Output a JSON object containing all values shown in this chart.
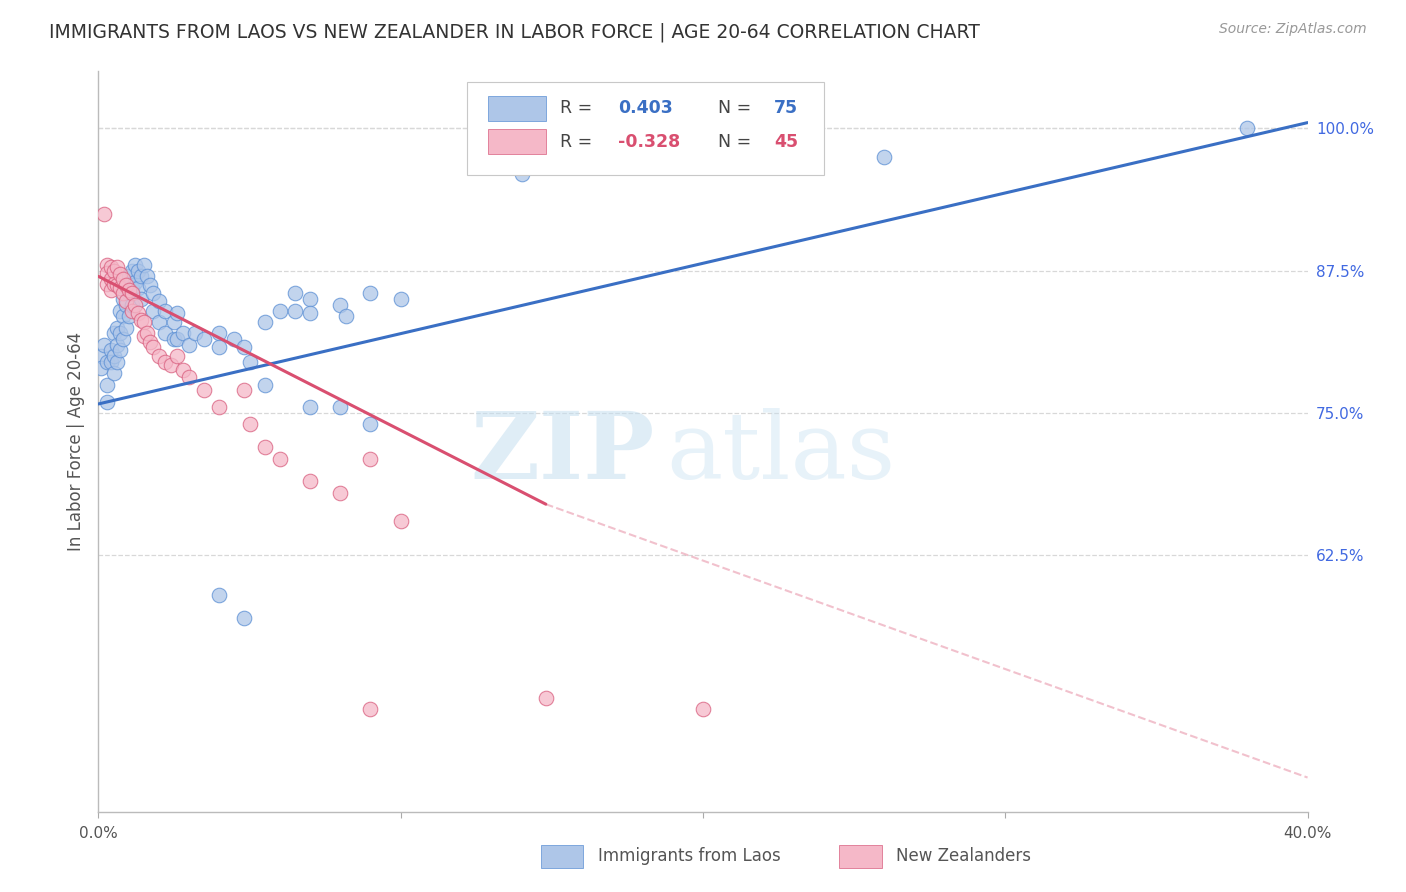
{
  "title": "IMMIGRANTS FROM LAOS VS NEW ZEALANDER IN LABOR FORCE | AGE 20-64 CORRELATION CHART",
  "source": "Source: ZipAtlas.com",
  "ylabel": "In Labor Force | Age 20-64",
  "xlim": [
    0.0,
    0.4
  ],
  "ylim": [
    0.4,
    1.05
  ],
  "blue_color": "#aec6e8",
  "pink_color": "#f5b8c8",
  "blue_edge": "#5b8fd4",
  "pink_edge": "#d95f7f",
  "blue_line": "#3a6fc4",
  "pink_line": "#d94f70",
  "blue_trend": [
    0.0,
    0.4,
    0.758,
    1.005
  ],
  "pink_trend_solid": [
    0.0,
    0.148,
    0.87,
    0.67
  ],
  "pink_trend_dashed": [
    0.148,
    0.4,
    0.67,
    0.43
  ],
  "watermark_zip": "ZIP",
  "watermark_atlas": "atlas",
  "grid_color": "#d8d8d8",
  "axis_label_color": "#4169e1",
  "blue_scatter": [
    [
      0.001,
      0.8
    ],
    [
      0.001,
      0.79
    ],
    [
      0.002,
      0.81
    ],
    [
      0.003,
      0.795
    ],
    [
      0.003,
      0.775
    ],
    [
      0.003,
      0.76
    ],
    [
      0.004,
      0.805
    ],
    [
      0.004,
      0.795
    ],
    [
      0.005,
      0.82
    ],
    [
      0.005,
      0.8
    ],
    [
      0.005,
      0.785
    ],
    [
      0.006,
      0.825
    ],
    [
      0.006,
      0.81
    ],
    [
      0.006,
      0.795
    ],
    [
      0.007,
      0.84
    ],
    [
      0.007,
      0.82
    ],
    [
      0.007,
      0.805
    ],
    [
      0.008,
      0.85
    ],
    [
      0.008,
      0.835
    ],
    [
      0.008,
      0.815
    ],
    [
      0.009,
      0.86
    ],
    [
      0.009,
      0.845
    ],
    [
      0.009,
      0.825
    ],
    [
      0.01,
      0.87
    ],
    [
      0.01,
      0.855
    ],
    [
      0.01,
      0.835
    ],
    [
      0.011,
      0.875
    ],
    [
      0.011,
      0.86
    ],
    [
      0.011,
      0.845
    ],
    [
      0.012,
      0.88
    ],
    [
      0.012,
      0.865
    ],
    [
      0.013,
      0.875
    ],
    [
      0.013,
      0.86
    ],
    [
      0.014,
      0.87
    ],
    [
      0.014,
      0.85
    ],
    [
      0.015,
      0.88
    ],
    [
      0.016,
      0.87
    ],
    [
      0.017,
      0.862
    ],
    [
      0.018,
      0.855
    ],
    [
      0.018,
      0.84
    ],
    [
      0.02,
      0.848
    ],
    [
      0.02,
      0.83
    ],
    [
      0.022,
      0.84
    ],
    [
      0.022,
      0.82
    ],
    [
      0.025,
      0.83
    ],
    [
      0.025,
      0.815
    ],
    [
      0.026,
      0.838
    ],
    [
      0.026,
      0.815
    ],
    [
      0.028,
      0.82
    ],
    [
      0.03,
      0.81
    ],
    [
      0.032,
      0.82
    ],
    [
      0.035,
      0.815
    ],
    [
      0.04,
      0.82
    ],
    [
      0.04,
      0.808
    ],
    [
      0.045,
      0.815
    ],
    [
      0.048,
      0.808
    ],
    [
      0.055,
      0.83
    ],
    [
      0.06,
      0.84
    ],
    [
      0.065,
      0.855
    ],
    [
      0.065,
      0.84
    ],
    [
      0.07,
      0.85
    ],
    [
      0.07,
      0.838
    ],
    [
      0.08,
      0.845
    ],
    [
      0.082,
      0.835
    ],
    [
      0.09,
      0.855
    ],
    [
      0.1,
      0.85
    ],
    [
      0.05,
      0.795
    ],
    [
      0.055,
      0.775
    ],
    [
      0.07,
      0.755
    ],
    [
      0.08,
      0.755
    ],
    [
      0.09,
      0.74
    ],
    [
      0.14,
      0.96
    ],
    [
      0.26,
      0.975
    ],
    [
      0.38,
      1.0
    ],
    [
      0.04,
      0.59
    ],
    [
      0.048,
      0.57
    ]
  ],
  "pink_scatter": [
    [
      0.002,
      0.925
    ],
    [
      0.003,
      0.88
    ],
    [
      0.003,
      0.873
    ],
    [
      0.003,
      0.863
    ],
    [
      0.004,
      0.878
    ],
    [
      0.004,
      0.868
    ],
    [
      0.004,
      0.858
    ],
    [
      0.005,
      0.875
    ],
    [
      0.005,
      0.863
    ],
    [
      0.006,
      0.878
    ],
    [
      0.006,
      0.862
    ],
    [
      0.007,
      0.872
    ],
    [
      0.007,
      0.86
    ],
    [
      0.008,
      0.868
    ],
    [
      0.008,
      0.855
    ],
    [
      0.009,
      0.862
    ],
    [
      0.009,
      0.848
    ],
    [
      0.01,
      0.858
    ],
    [
      0.011,
      0.855
    ],
    [
      0.011,
      0.84
    ],
    [
      0.012,
      0.845
    ],
    [
      0.013,
      0.838
    ],
    [
      0.014,
      0.832
    ],
    [
      0.015,
      0.83
    ],
    [
      0.015,
      0.818
    ],
    [
      0.016,
      0.82
    ],
    [
      0.017,
      0.812
    ],
    [
      0.018,
      0.808
    ],
    [
      0.02,
      0.8
    ],
    [
      0.022,
      0.795
    ],
    [
      0.024,
      0.792
    ],
    [
      0.026,
      0.8
    ],
    [
      0.028,
      0.788
    ],
    [
      0.03,
      0.782
    ],
    [
      0.035,
      0.77
    ],
    [
      0.04,
      0.755
    ],
    [
      0.048,
      0.77
    ],
    [
      0.05,
      0.74
    ],
    [
      0.055,
      0.72
    ],
    [
      0.06,
      0.71
    ],
    [
      0.07,
      0.69
    ],
    [
      0.08,
      0.68
    ],
    [
      0.09,
      0.71
    ],
    [
      0.1,
      0.655
    ],
    [
      0.148,
      0.5
    ],
    [
      0.2,
      0.49
    ],
    [
      0.09,
      0.49
    ]
  ],
  "ytick_positions": [
    0.625,
    0.75,
    0.875,
    1.0
  ],
  "ytick_labels": [
    "62.5%",
    "75.0%",
    "87.5%",
    "100.0%"
  ],
  "xtick_positions": [
    0.0,
    0.1,
    0.2,
    0.3,
    0.4
  ],
  "xtick_labels": [
    "0.0%",
    "",
    "",
    "",
    "40.0%"
  ]
}
